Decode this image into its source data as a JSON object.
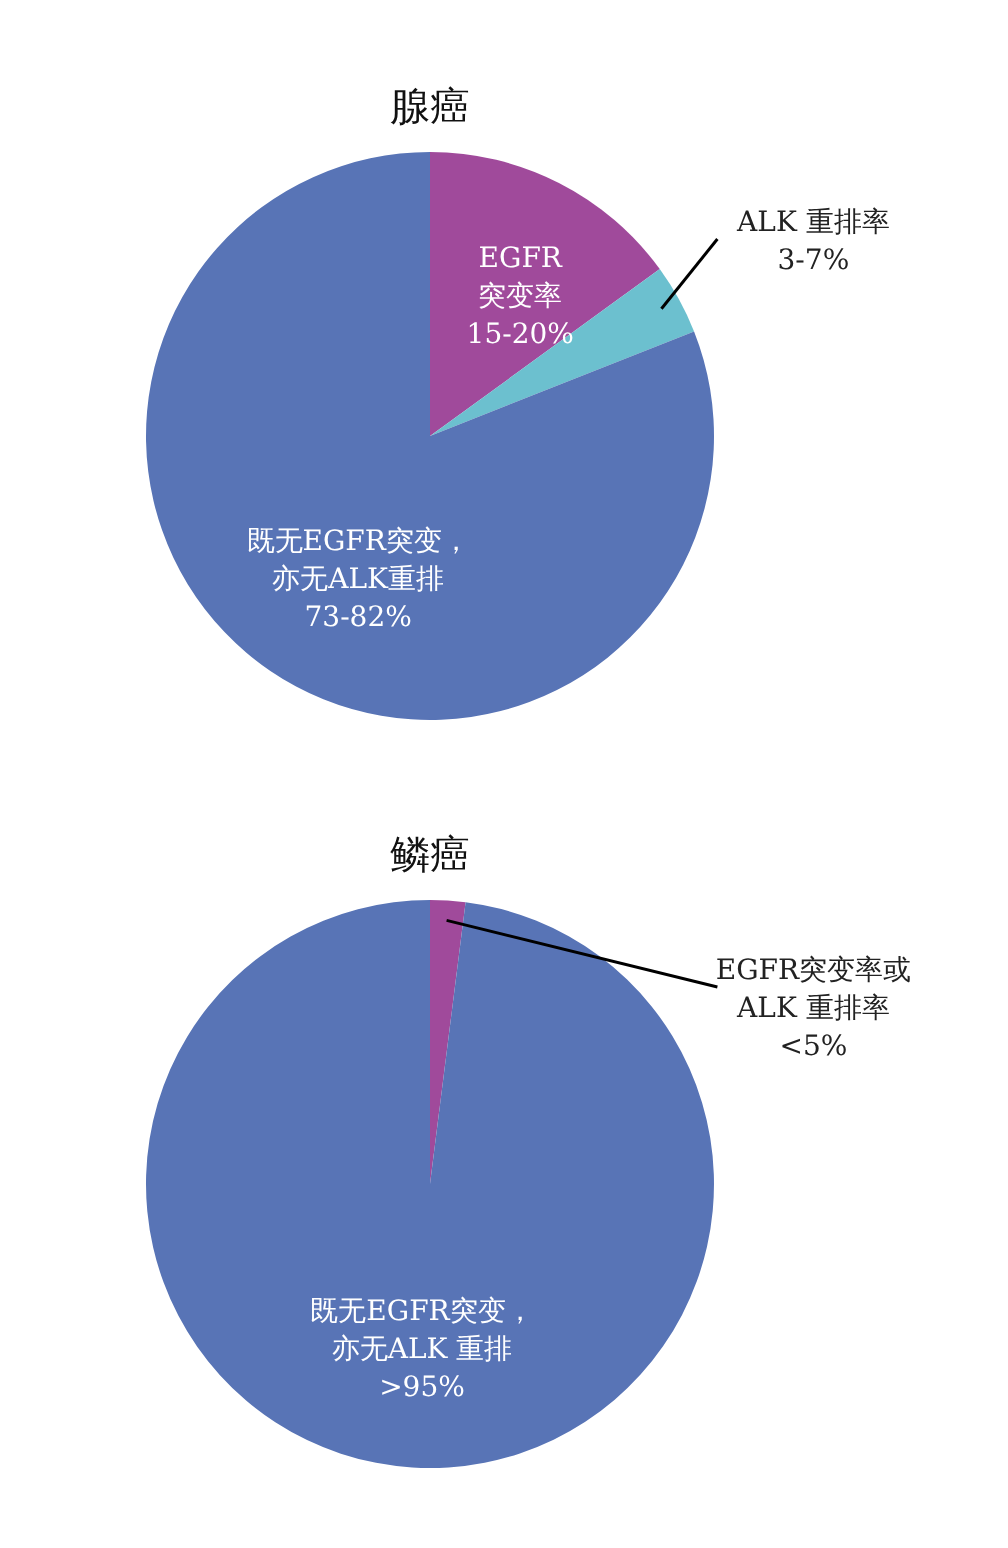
{
  "chart_data": [
    {
      "type": "pie",
      "title": "腺癌",
      "categories": [
        "EGFR\n突变率\n15-20%",
        "ALK 重排率\n3-7%",
        "既无EGFR突变，亦无ALK重排\n73-82%"
      ],
      "values": [
        15,
        4,
        81
      ],
      "colors": [
        "#a04a9b",
        "#6cc0cf",
        "#5874b6"
      ]
    },
    {
      "type": "pie",
      "title": "鳞癌",
      "categories": [
        "EGFR突变率或\nALK 重排率\n<5%",
        "既无EGFR突变，亦无ALK 重排\n>95%"
      ],
      "values": [
        2,
        98
      ],
      "colors": [
        "#a04a9b",
        "#5874b6"
      ]
    }
  ]
}
